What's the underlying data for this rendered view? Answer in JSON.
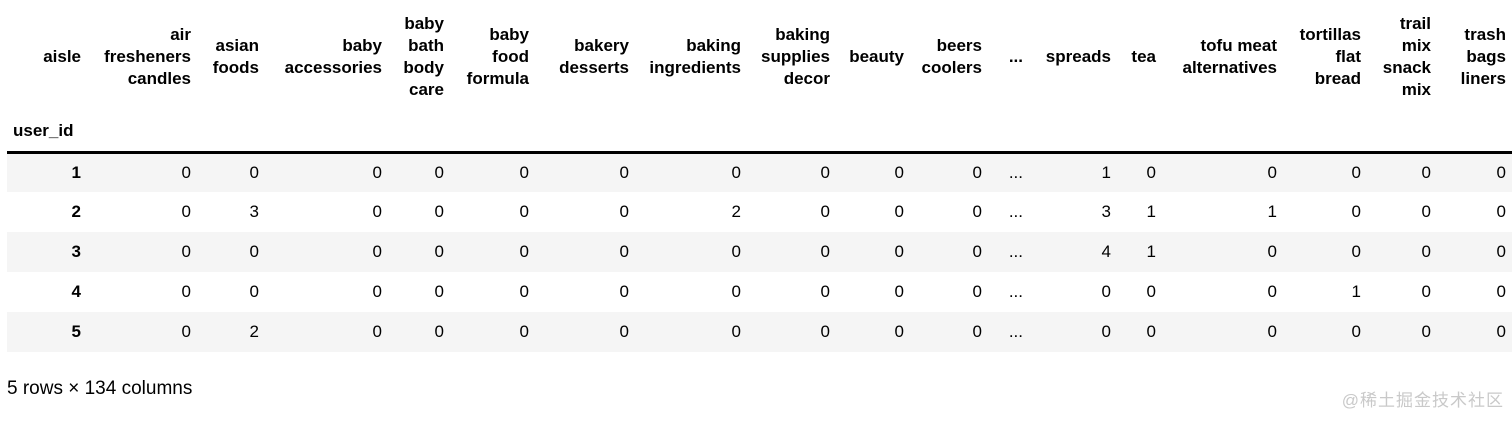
{
  "table": {
    "columns_axis_name": "aisle",
    "index_name": "user_id",
    "columns": [
      "air fresheners candles",
      "asian foods",
      "baby accessories",
      "baby bath body care",
      "baby food formula",
      "bakery desserts",
      "baking ingredients",
      "baking supplies decor",
      "beauty",
      "beers coolers",
      "...",
      "spreads",
      "tea",
      "tofu meat alternatives",
      "tortillas flat bread",
      "trail mix snack mix",
      "trash bags liners"
    ],
    "rows": [
      {
        "index": "1",
        "values": [
          "0",
          "0",
          "0",
          "0",
          "0",
          "0",
          "0",
          "0",
          "0",
          "0",
          "...",
          "1",
          "0",
          "0",
          "0",
          "0",
          "0"
        ]
      },
      {
        "index": "2",
        "values": [
          "0",
          "3",
          "0",
          "0",
          "0",
          "0",
          "2",
          "0",
          "0",
          "0",
          "...",
          "3",
          "1",
          "1",
          "0",
          "0",
          "0"
        ]
      },
      {
        "index": "3",
        "values": [
          "0",
          "0",
          "0",
          "0",
          "0",
          "0",
          "0",
          "0",
          "0",
          "0",
          "...",
          "4",
          "1",
          "0",
          "0",
          "0",
          "0"
        ]
      },
      {
        "index": "4",
        "values": [
          "0",
          "0",
          "0",
          "0",
          "0",
          "0",
          "0",
          "0",
          "0",
          "0",
          "...",
          "0",
          "0",
          "0",
          "1",
          "0",
          "0"
        ]
      },
      {
        "index": "5",
        "values": [
          "0",
          "2",
          "0",
          "0",
          "0",
          "0",
          "0",
          "0",
          "0",
          "0",
          "...",
          "0",
          "0",
          "0",
          "0",
          "0",
          "0"
        ]
      }
    ],
    "shape_caption": "5 rows × 134 columns"
  },
  "watermark": "@稀土掘金技术社区",
  "colors": {
    "row_stripe": "#f5f5f5",
    "header_border": "#000000",
    "watermark_text": "#c9c9c9",
    "text": "#000000"
  }
}
